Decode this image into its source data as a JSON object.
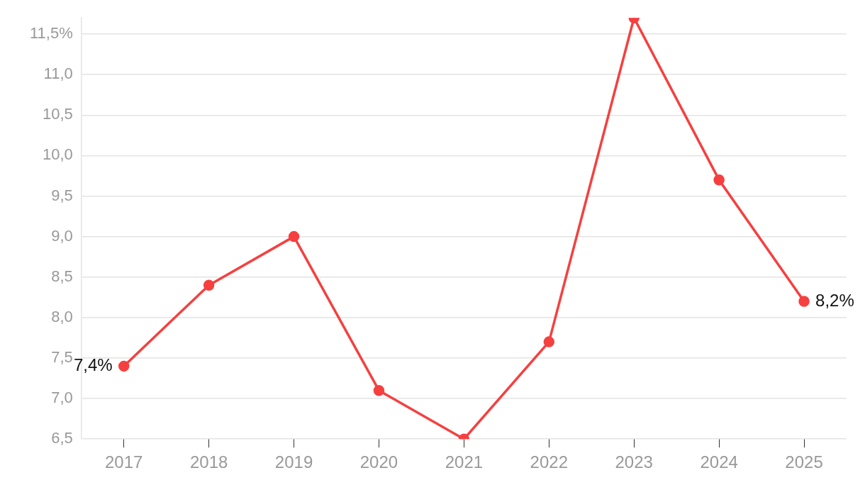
{
  "chart_data": {
    "type": "line",
    "categories": [
      "2017",
      "2018",
      "2019",
      "2020",
      "2021",
      "2022",
      "2023",
      "2024",
      "2025"
    ],
    "series": [
      {
        "color": "#f5403f",
        "values": [
          7.4,
          8.4,
          9.0,
          7.1,
          6.5,
          7.7,
          11.7,
          9.7,
          8.2
        ],
        "value_labels": [
          "7,4%",
          null,
          null,
          null,
          null,
          null,
          null,
          null,
          "8,2%"
        ]
      }
    ],
    "yticks": [
      {
        "value": 6.5,
        "label": "6,5"
      },
      {
        "value": 7,
        "label": "7,0"
      },
      {
        "value": 7.5,
        "label": "7,5"
      },
      {
        "value": 8,
        "label": "8,0"
      },
      {
        "value": 8.5,
        "label": "8,5"
      },
      {
        "value": 9,
        "label": "9,0"
      },
      {
        "value": 9.5,
        "label": "9,5"
      },
      {
        "value": 10,
        "label": "10,0"
      },
      {
        "value": 10.5,
        "label": "10,5"
      },
      {
        "value": 11,
        "label": "11,0"
      },
      {
        "value": 11.5,
        "label": "11,5%"
      }
    ],
    "ylim": [
      6.5,
      11.7
    ],
    "grid": "y",
    "legend": false,
    "marker": "circle",
    "line_style": "solid"
  }
}
